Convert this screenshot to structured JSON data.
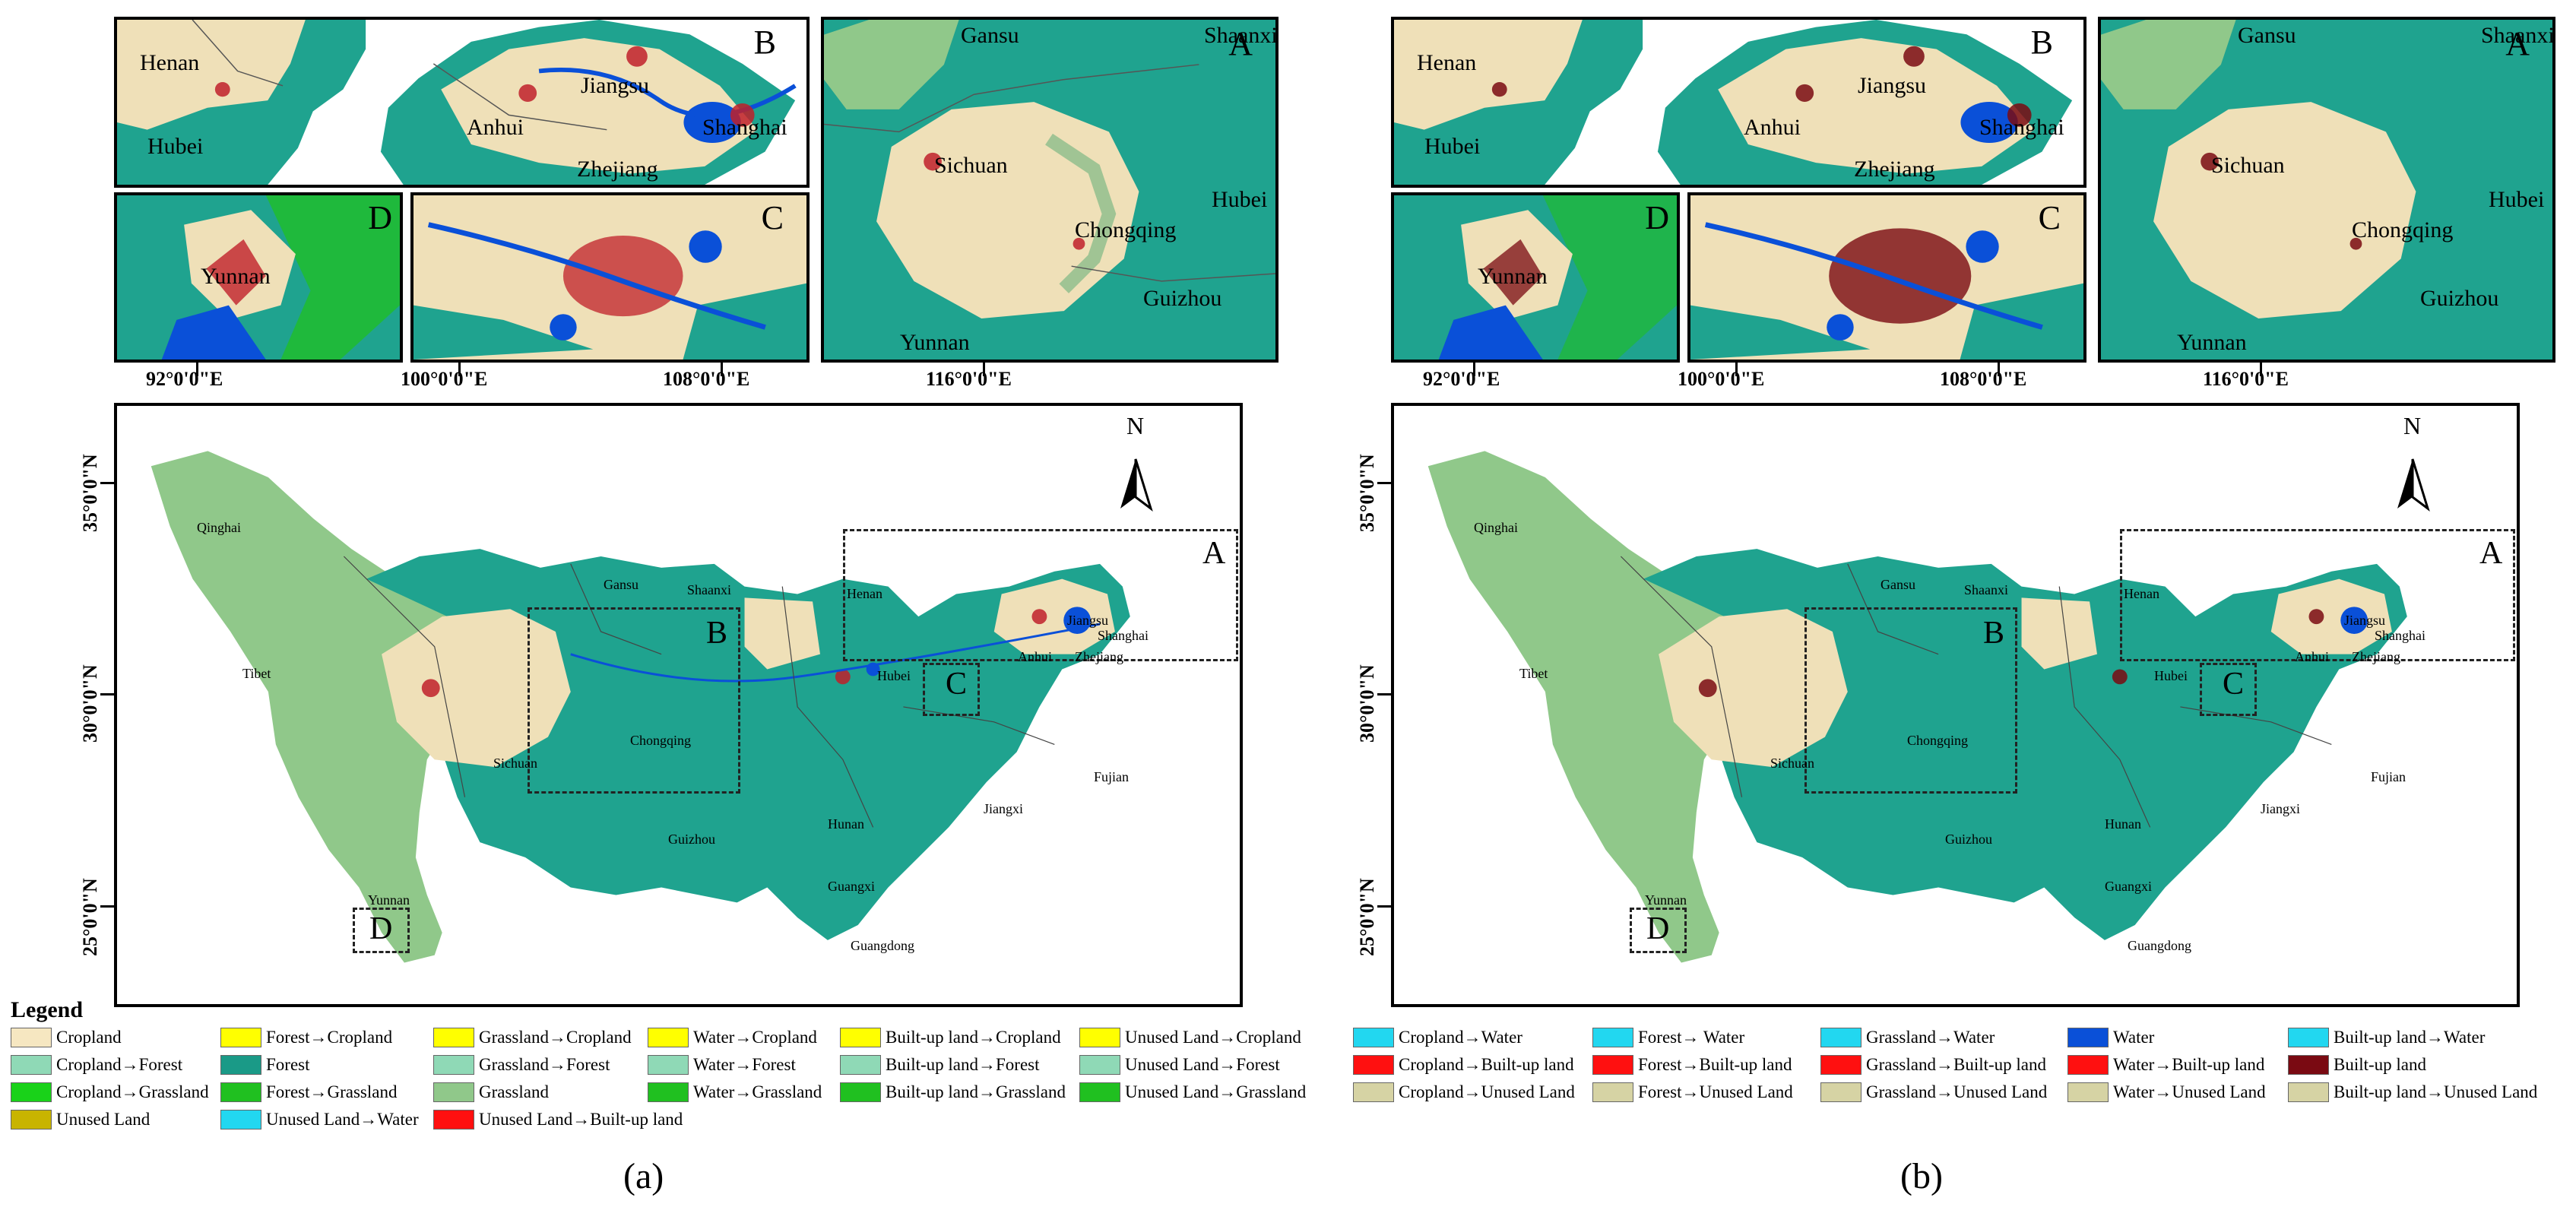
{
  "panels": [
    {
      "caption": "(a)",
      "inset_labels": {
        "A": "A",
        "B": "B",
        "C": "C",
        "D": "D"
      },
      "inset_a_places": [
        "Gansu",
        "Shaanxi",
        "Sichuan",
        "Chongqing",
        "Hubei",
        "Guizhou",
        "Yunnan"
      ],
      "inset_b_places": [
        "Henan",
        "Hubei",
        "Jiangsu",
        "Anhui",
        "Shanghai",
        "Zhejiang"
      ],
      "inset_d_places": [
        "Yunnan"
      ],
      "lon_labels": [
        "92°0'0\"E",
        "100°0'0\"E",
        "108°0'0\"E",
        "116°0'0\"E"
      ],
      "lat_labels": [
        "35°0'0\"N",
        "30°0'0\"N",
        "25°0'0\"N"
      ],
      "north": "N",
      "main_places": [
        "Qinghai",
        "Tibet",
        "Gansu",
        "Shaanxi",
        "Henan",
        "Sichuan",
        "Chongqing",
        "Hubei",
        "Anhui",
        "Jiangsu",
        "Shanghai",
        "Zhejiang",
        "Guizhou",
        "Hunan",
        "Jiangxi",
        "Fujian",
        "Yunnan",
        "Guangxi",
        "Guangdong"
      ],
      "zone_letters": [
        "A",
        "B",
        "C",
        "D"
      ]
    },
    {
      "caption": "(b)",
      "inset_labels": {
        "A": "A",
        "B": "B",
        "C": "C",
        "D": "D"
      },
      "inset_a_places": [
        "Gansu",
        "Shaanxi",
        "Sichuan",
        "Chongqing",
        "Hubei",
        "Guizhou",
        "Yunnan"
      ],
      "inset_b_places": [
        "Henan",
        "Hubei",
        "Jiangsu",
        "Anhui",
        "Shanghai",
        "Zhejiang"
      ],
      "inset_d_places": [
        "Yunnan"
      ],
      "lon_labels": [
        "92°0'0\"E",
        "100°0'0\"E",
        "108°0'0\"E",
        "116°0'0\"E"
      ],
      "lat_labels": [
        "35°0'0\"N",
        "30°0'0\"N",
        "25°0'0\"N"
      ],
      "north": "N",
      "main_places": [
        "Qinghai",
        "Tibet",
        "Gansu",
        "Shaanxi",
        "Henan",
        "Sichuan",
        "Chongqing",
        "Hubei",
        "Anhui",
        "Jiangsu",
        "Shanghai",
        "Zhejiang",
        "Guizhou",
        "Hunan",
        "Jiangxi",
        "Fujian",
        "Yunnan",
        "Guangxi",
        "Guangdong"
      ],
      "zone_letters": [
        "A",
        "B",
        "C",
        "D"
      ]
    }
  ],
  "legend": {
    "title": "Legend",
    "items": [
      {
        "label": "Cropland",
        "color": "#f6e7c1"
      },
      {
        "label": "Cropland→Forest",
        "color": "#8fd9b6"
      },
      {
        "label": "Cropland→Grassland",
        "color": "#19d219"
      },
      {
        "label": "Unused Land",
        "color": "#c8b400"
      },
      {
        "label": "Forest→Cropland",
        "color": "#ffff00"
      },
      {
        "label": "Forest",
        "color": "#1a9a87"
      },
      {
        "label": "Forest→Grassland",
        "color": "#20c020"
      },
      {
        "label": "Unused Land→Water",
        "color": "#22d7f0"
      },
      {
        "label": "Grassland→Cropland",
        "color": "#ffff00"
      },
      {
        "label": "Grassland→Forest",
        "color": "#8fd9b6"
      },
      {
        "label": "Grassland",
        "color": "#90c88a"
      },
      {
        "label": "Unused Land→Built-up land",
        "color": "#ff1010"
      },
      {
        "label": "Water→Cropland",
        "color": "#ffff00"
      },
      {
        "label": "Water→Forest",
        "color": "#8fd9b6"
      },
      {
        "label": "Water→Grassland",
        "color": "#20c020"
      },
      {
        "label": "Built-up land→Cropland",
        "color": "#ffff00"
      },
      {
        "label": "Built-up land→Forest",
        "color": "#8fd9b6"
      },
      {
        "label": "Built-up land→Grassland",
        "color": "#20c020"
      },
      {
        "label": "Unused Land→Cropland",
        "color": "#ffff00"
      },
      {
        "label": "Unused Land→Forest",
        "color": "#8fd9b6"
      },
      {
        "label": "Unused Land→Grassland",
        "color": "#20c020"
      },
      {
        "label": "Cropland→Water",
        "color": "#22d7f0"
      },
      {
        "label": "Cropland→Built-up land",
        "color": "#ff1010"
      },
      {
        "label": "Cropland→Unused Land",
        "color": "#d6d3a4"
      },
      {
        "label": "Forest→ Water",
        "color": "#22d7f0"
      },
      {
        "label": "Forest→Built-up land",
        "color": "#ff1010"
      },
      {
        "label": "Forest→Unused Land",
        "color": "#d6d3a4"
      },
      {
        "label": "Grassland→Water",
        "color": "#22d7f0"
      },
      {
        "label": "Grassland→Built-up land",
        "color": "#ff1010"
      },
      {
        "label": "Grassland→Unused Land",
        "color": "#d6d3a4"
      },
      {
        "label": "Water",
        "color": "#0a50d8"
      },
      {
        "label": "Water→Built-up land",
        "color": "#ff1010"
      },
      {
        "label": "Water→Unused Land",
        "color": "#d6d3a4"
      },
      {
        "label": "Built-up land→Water",
        "color": "#22d7f0"
      },
      {
        "label": "Built-up land",
        "color": "#7a0a12"
      },
      {
        "label": "Built-up land→Unused Land",
        "color": "#d6d3a4"
      }
    ]
  }
}
